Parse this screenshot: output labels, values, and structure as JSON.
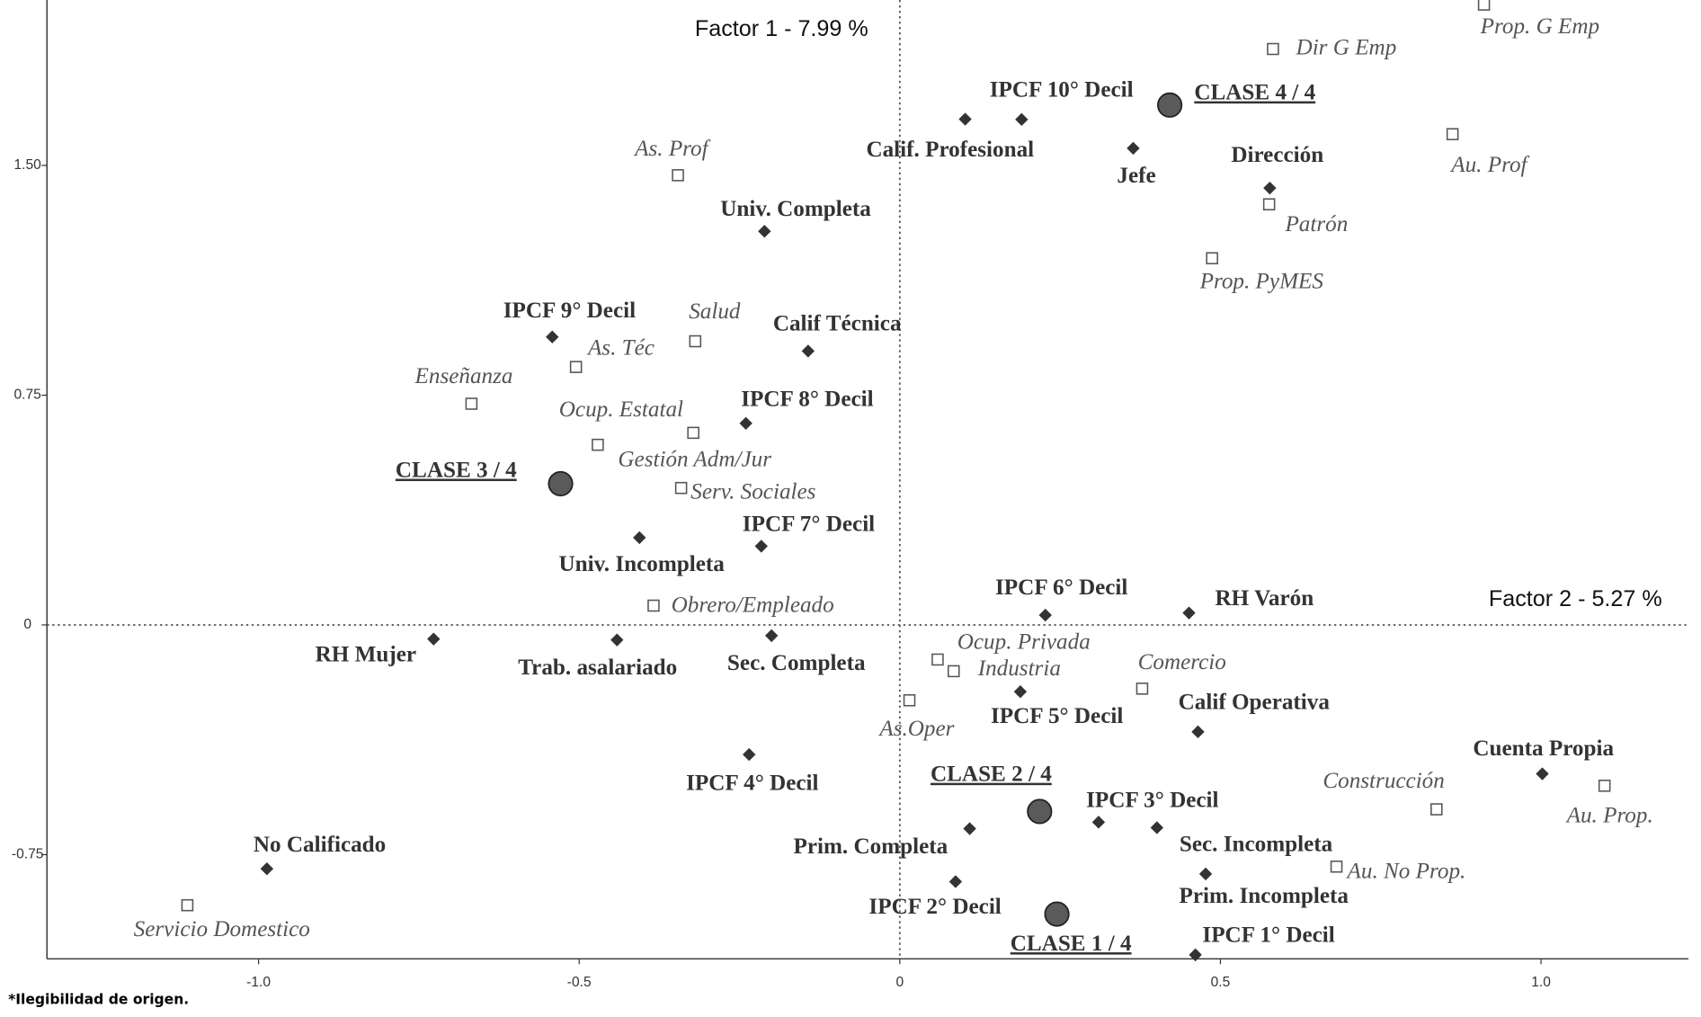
{
  "chart_data": {
    "type": "scatter",
    "ylabel": "Factor 1 - 7.99 %",
    "xlabel": "Factor 2 - 5.27 %",
    "note": "*Ilegibilidad de origen.",
    "xlim": [
      -1.33,
      1.23
    ],
    "ylim": [
      -1.09,
      2.04
    ],
    "xticks": [
      {
        "value": -1,
        "label": "-1.0"
      },
      -0.5,
      0,
      0.5,
      {
        "value": 1,
        "label": "1.0"
      }
    ],
    "yticks": [
      {
        "value": 1.5,
        "label": "1.50"
      },
      0.75,
      0,
      -0.75
    ],
    "grid": false,
    "series": [
      {
        "marker": "diamond",
        "color": "#333333",
        "labels": [
          "Calif. Profesional",
          "IPCF 10° Decil",
          "Jefe",
          "Dirección",
          "Univ. Completa",
          "IPCF 9° Decil",
          "Calif Técnica",
          "IPCF 8° Decil",
          "Univ. Incompleta",
          "IPCF 7° Decil",
          "IPCF 6° Decil",
          "RH Varón",
          "RH Mujer",
          "Trab. asalariado",
          "Sec. Completa",
          "IPCF 5° Decil",
          "Calif Operativa",
          "IPCF 4° Decil",
          "Cuenta Propia",
          "IPCF 3° Decil",
          "Sec. Incompleta",
          "Prim. Completa",
          "Prim. Incompleta",
          "IPCF 2° Decil",
          "No Calificado",
          "IPCF 1° Decil"
        ],
        "x": [
          0.102,
          0.19,
          0.364,
          0.577,
          -0.211,
          -0.542,
          -0.143,
          -0.24,
          -0.406,
          -0.216,
          0.227,
          0.451,
          -0.727,
          -0.441,
          -0.2,
          0.188,
          0.465,
          -0.235,
          1.002,
          0.31,
          0.401,
          0.109,
          0.477,
          0.087,
          -0.987,
          0.461
        ],
        "y": [
          1.651,
          1.65,
          1.556,
          1.426,
          1.285,
          0.94,
          0.894,
          0.658,
          0.285,
          0.257,
          0.032,
          0.039,
          -0.046,
          -0.049,
          -0.035,
          -0.218,
          -0.349,
          -0.423,
          -0.486,
          -0.644,
          -0.662,
          -0.665,
          -0.813,
          -0.838,
          -0.796,
          -1.077
        ]
      },
      {
        "marker": "square",
        "color": "#555555",
        "labels": [
          "Prop. G Emp",
          "Dir G Emp",
          "Au. Prof",
          "As. Prof",
          "Patrón",
          "Prop. PyMES",
          "Salud",
          "As. Téc",
          "Enseñanza",
          "Ocup. Estatal",
          "Gestión Adm/Jur",
          "Serv. Sociales",
          "Obrero/Empleado",
          "Ocup. Privada",
          "Industria",
          "Comercio",
          "As.Oper",
          "Construcción",
          "Au. Prop.",
          "Au. No Prop.",
          "Servicio Domestico"
        ],
        "x": [
          0.911,
          0.582,
          0.862,
          -0.346,
          0.576,
          0.487,
          -0.319,
          -0.505,
          -0.668,
          -0.322,
          -0.471,
          -0.341,
          -0.384,
          0.059,
          0.084,
          0.378,
          0.015,
          0.837,
          1.099,
          0.681,
          -1.111
        ],
        "y": [
          2.025,
          1.88,
          1.602,
          1.468,
          1.373,
          1.197,
          0.926,
          0.842,
          0.722,
          0.627,
          0.588,
          0.447,
          0.063,
          -0.113,
          -0.151,
          -0.208,
          -0.246,
          -0.602,
          -0.525,
          -0.789,
          -0.915
        ]
      },
      {
        "marker": "circle",
        "color": "#5a5a5a",
        "labels": [
          "CLASE 4 / 4",
          "CLASE 3 / 4",
          "CLASE 2 / 4",
          "CLASE 1 / 4"
        ],
        "x": [
          0.421,
          -0.529,
          0.218,
          0.245
        ],
        "y": [
          1.697,
          0.461,
          -0.609,
          -0.944
        ]
      }
    ]
  }
}
